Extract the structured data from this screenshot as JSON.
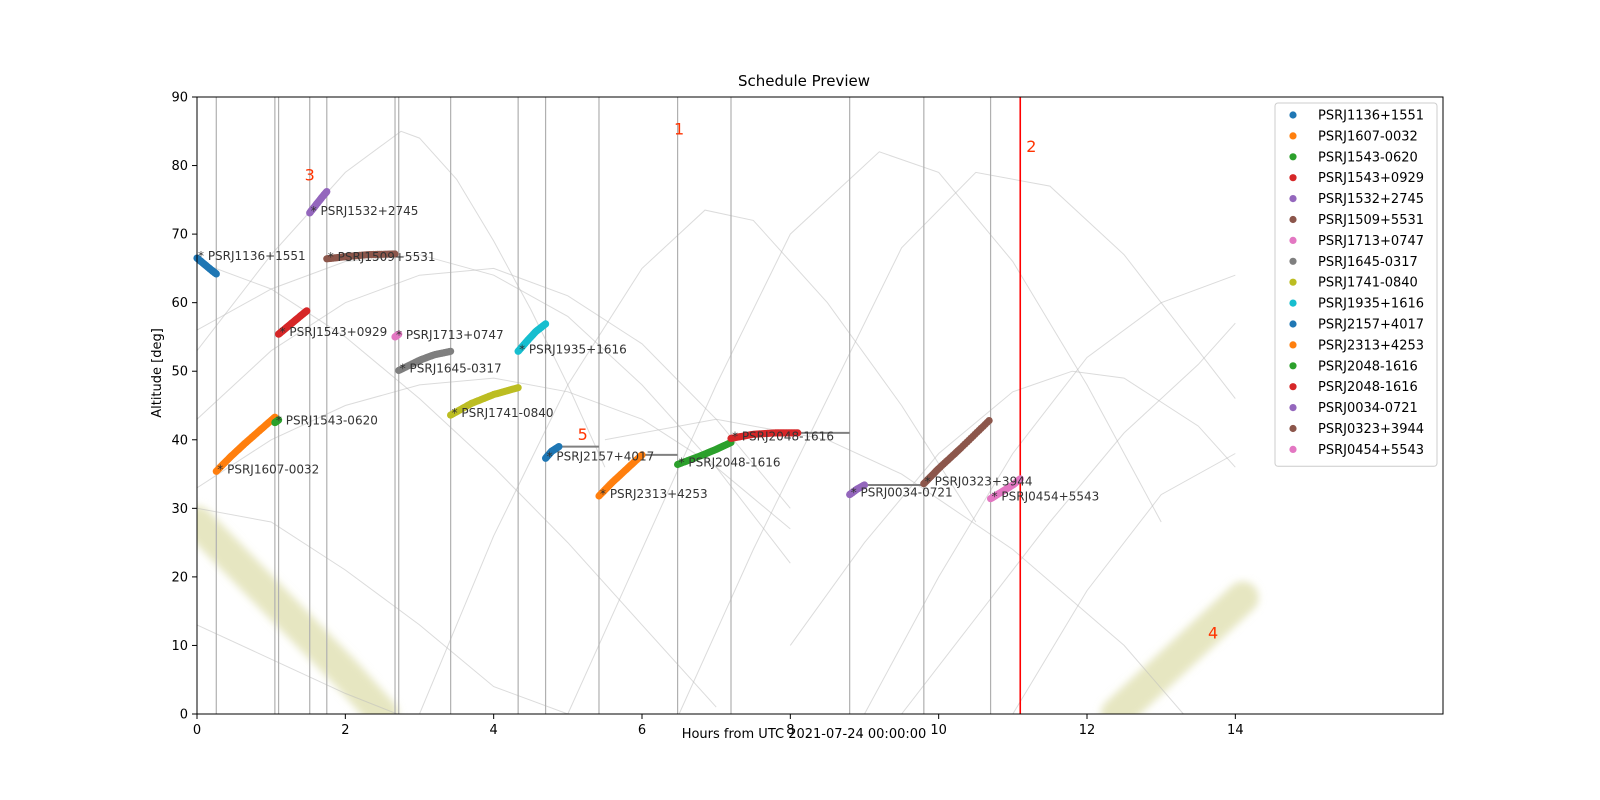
{
  "chart_data": {
    "type": "scatter",
    "title": "Schedule Preview",
    "xlabel": "Hours from UTC 2021-07-24 00:00:00",
    "ylabel": "Altitude [deg]",
    "xlim": [
      0,
      16.8
    ],
    "ylim": [
      0,
      90
    ],
    "xticks": [
      0,
      2,
      4,
      6,
      8,
      10,
      12,
      14
    ],
    "yticks": [
      0,
      10,
      20,
      30,
      40,
      50,
      60,
      70,
      80,
      90
    ],
    "grid": false,
    "legend_position": "top-right",
    "session_boundaries_hours": [
      0.26,
      1.05,
      1.1,
      1.52,
      1.75,
      2.67,
      2.72,
      3.42,
      4.33,
      4.7,
      5.42,
      6.48,
      7.2,
      8.8,
      9.8,
      10.7
    ],
    "current_time_hours": 11.1,
    "series": [
      {
        "name": "PSRJ1136+1551",
        "label": "* PSRJ1136+1551",
        "color": "#1f77b4",
        "x": [
          0.0,
          0.1,
          0.2,
          0.26
        ],
        "y": [
          66.5,
          65.6,
          64.7,
          64.2
        ]
      },
      {
        "name": "PSRJ1607-0032",
        "label": "* PSRJ1607-0032",
        "color": "#ff7f0e",
        "x": [
          0.26,
          0.45,
          0.65,
          0.85,
          1.05
        ],
        "y": [
          35.4,
          37.5,
          39.5,
          41.4,
          43.3
        ]
      },
      {
        "name": "PSRJ1543-0620",
        "label": "* PSRJ1543-0620",
        "color": "#2ca02c",
        "x": [
          1.05,
          1.1
        ],
        "y": [
          42.5,
          42.9
        ]
      },
      {
        "name": "PSRJ1543+0929",
        "label": "* PSRJ1543+0929",
        "color": "#d62728",
        "x": [
          1.1,
          1.2,
          1.3,
          1.4,
          1.48
        ],
        "y": [
          55.4,
          56.3,
          57.2,
          58.1,
          58.8
        ]
      },
      {
        "name": "PSRJ1532+2745",
        "label": "* PSRJ1532+2745",
        "color": "#9467bd",
        "x": [
          1.52,
          1.6,
          1.68,
          1.75
        ],
        "y": [
          73.1,
          74.2,
          75.3,
          76.2
        ]
      },
      {
        "name": "PSRJ1509+5531",
        "label": "* PSRJ1509+5531",
        "color": "#8c564b",
        "x": [
          1.75,
          2.0,
          2.3,
          2.67
        ],
        "y": [
          66.4,
          66.7,
          67.0,
          67.1
        ]
      },
      {
        "name": "PSRJ1713+0747",
        "label": "* PSRJ1713+0747",
        "color": "#e377c2",
        "x": [
          2.67,
          2.72
        ],
        "y": [
          55.0,
          55.4
        ]
      },
      {
        "name": "PSRJ1645-0317",
        "label": "* PSRJ1645-0317",
        "color": "#7f7f7f",
        "x": [
          2.72,
          3.0,
          3.2,
          3.42
        ],
        "y": [
          50.1,
          51.6,
          52.4,
          52.9
        ]
      },
      {
        "name": "PSRJ1741-0840",
        "label": "* PSRJ1741-0840",
        "color": "#bcbd22",
        "x": [
          3.42,
          3.7,
          4.0,
          4.33
        ],
        "y": [
          43.6,
          45.3,
          46.6,
          47.6
        ]
      },
      {
        "name": "PSRJ1935+1616",
        "label": "* PSRJ1935+1616",
        "color": "#17becf",
        "x": [
          4.33,
          4.45,
          4.57,
          4.7
        ],
        "y": [
          52.9,
          54.4,
          55.8,
          56.9
        ]
      },
      {
        "name": "PSRJ2157+4017",
        "label": "* PSRJ2157+4017",
        "color": "#1f77b4",
        "x": [
          4.7,
          4.78,
          4.88
        ],
        "y": [
          37.3,
          38.3,
          39.0
        ]
      },
      {
        "name": "PSRJ2313+4253",
        "label": "* PSRJ2313+4253",
        "color": "#ff7f0e",
        "x": [
          5.42,
          5.6,
          5.8,
          6.0
        ],
        "y": [
          31.8,
          33.8,
          35.8,
          37.8
        ]
      },
      {
        "name": "PSRJ2048-1616",
        "label": "* PSRJ2048-1616",
        "color": "#2ca02c",
        "x": [
          6.48,
          6.8,
          7.0,
          7.2
        ],
        "y": [
          36.4,
          37.7,
          38.6,
          39.6
        ]
      },
      {
        "name": "PSRJ2048-1616",
        "label": "* PSRJ2048-1616",
        "color": "#d62728",
        "x": [
          7.2,
          7.5,
          7.8,
          8.1
        ],
        "y": [
          40.2,
          40.8,
          41.0,
          41.0
        ]
      },
      {
        "name": "PSRJ0034-0721",
        "label": "* PSRJ0034-0721",
        "color": "#9467bd",
        "x": [
          8.8,
          8.9,
          9.0
        ],
        "y": [
          32.0,
          32.8,
          33.4
        ]
      },
      {
        "name": "PSRJ0323+3944",
        "label": "* PSRJ0323+3944",
        "color": "#8c564b",
        "x": [
          9.8,
          10.0,
          10.3,
          10.68
        ],
        "y": [
          33.6,
          35.8,
          38.8,
          42.8
        ]
      },
      {
        "name": "PSRJ0454+5543",
        "label": "* PSRJ0454+5543",
        "color": "#e377c2",
        "x": [
          10.7,
          10.85,
          11.0,
          11.1
        ],
        "y": [
          31.4,
          32.4,
          33.4,
          34.3
        ]
      }
    ],
    "wait_segments": [
      {
        "x": [
          4.88,
          5.42
        ],
        "y": [
          39.0,
          39.0
        ]
      },
      {
        "x": [
          6.0,
          6.48
        ],
        "y": [
          37.8,
          37.8
        ]
      },
      {
        "x": [
          8.1,
          8.8
        ],
        "y": [
          41.0,
          41.0
        ]
      },
      {
        "x": [
          9.0,
          9.8
        ],
        "y": [
          33.4,
          33.4
        ]
      }
    ],
    "background_tracks": [
      {
        "x": [
          0,
          0.5,
          1.0,
          1.5,
          2.0,
          2.5,
          2.75,
          3.0,
          3.5,
          4.0,
          4.5,
          5.0,
          5.5
        ],
        "y": [
          53,
          60,
          67,
          73,
          79,
          83,
          85,
          84,
          78,
          69,
          59,
          48,
          36
        ]
      },
      {
        "x": [
          0,
          1,
          2,
          3,
          4,
          5,
          6,
          7,
          8
        ],
        "y": [
          56,
          62,
          66,
          67,
          64,
          58,
          48,
          36,
          22
        ]
      },
      {
        "x": [
          0,
          1,
          2,
          3,
          4,
          5,
          6,
          7,
          8
        ],
        "y": [
          43,
          53,
          60,
          64,
          65,
          61,
          54,
          43,
          30
        ]
      },
      {
        "x": [
          0,
          1,
          2,
          3,
          4,
          5,
          6,
          7,
          8
        ],
        "y": [
          33,
          40,
          45,
          48,
          49,
          47,
          43,
          36,
          27
        ]
      },
      {
        "x": [
          0,
          1,
          2,
          3,
          4,
          5,
          6,
          7
        ],
        "y": [
          66,
          62,
          55,
          46,
          36,
          25,
          13,
          1
        ]
      },
      {
        "x": [
          0,
          1,
          2,
          3,
          4,
          5,
          6
        ],
        "y": [
          30,
          28,
          21,
          13,
          4,
          0,
          0
        ]
      },
      {
        "x": [
          0,
          1,
          2,
          2.7
        ],
        "y": [
          13,
          8,
          3,
          0
        ]
      },
      {
        "x": [
          3.0,
          4,
          5,
          6,
          6.85,
          7.5,
          8.5,
          9.5,
          10.5
        ],
        "y": [
          0,
          26,
          48,
          65,
          73.5,
          72,
          60,
          45,
          28
        ]
      },
      {
        "x": [
          5.0,
          6,
          7,
          8,
          9.2,
          10,
          11,
          12,
          13
        ],
        "y": [
          0,
          24,
          48,
          70,
          82,
          79,
          66,
          48,
          28
        ]
      },
      {
        "x": [
          6.5,
          7.5,
          8.5,
          9.5,
          10.5,
          11.5,
          12.5,
          13.5,
          14
        ],
        "y": [
          0,
          24,
          46,
          68,
          79,
          77,
          67,
          53,
          46
        ]
      },
      {
        "x": [
          8,
          9,
          10,
          11,
          11.8,
          12.5,
          13.5,
          14
        ],
        "y": [
          10,
          25,
          38,
          47,
          50,
          49,
          42,
          36
        ]
      },
      {
        "x": [
          9,
          10,
          11,
          12,
          13,
          14
        ],
        "y": [
          0,
          20,
          38,
          52,
          60,
          64
        ]
      },
      {
        "x": [
          9.5,
          10.5,
          11.5,
          12.5,
          13.5,
          14
        ],
        "y": [
          0,
          14,
          28,
          41,
          51,
          57
        ]
      },
      {
        "x": [
          11,
          12,
          13,
          14
        ],
        "y": [
          0,
          18,
          32,
          38
        ]
      },
      {
        "x": [
          5.5,
          7,
          8.5,
          9.5,
          11,
          12.5,
          13.3
        ],
        "y": [
          40,
          43,
          40,
          35,
          24,
          10,
          0
        ]
      }
    ],
    "sun_band": [
      {
        "x": [
          0,
          1,
          2,
          2.5
        ],
        "y": [
          28,
          17,
          6,
          0
        ]
      },
      {
        "x": [
          12.4,
          13,
          13.6,
          14.1
        ],
        "y": [
          0,
          6,
          12,
          17
        ]
      }
    ],
    "annotations": [
      {
        "text": "1",
        "x": 6.5,
        "y": 84.5
      },
      {
        "text": "2",
        "x": 11.25,
        "y": 82
      },
      {
        "text": "3",
        "x": 1.52,
        "y": 77.8
      },
      {
        "text": "4",
        "x": 13.7,
        "y": 11
      },
      {
        "text": "5",
        "x": 5.2,
        "y": 40
      }
    ]
  }
}
